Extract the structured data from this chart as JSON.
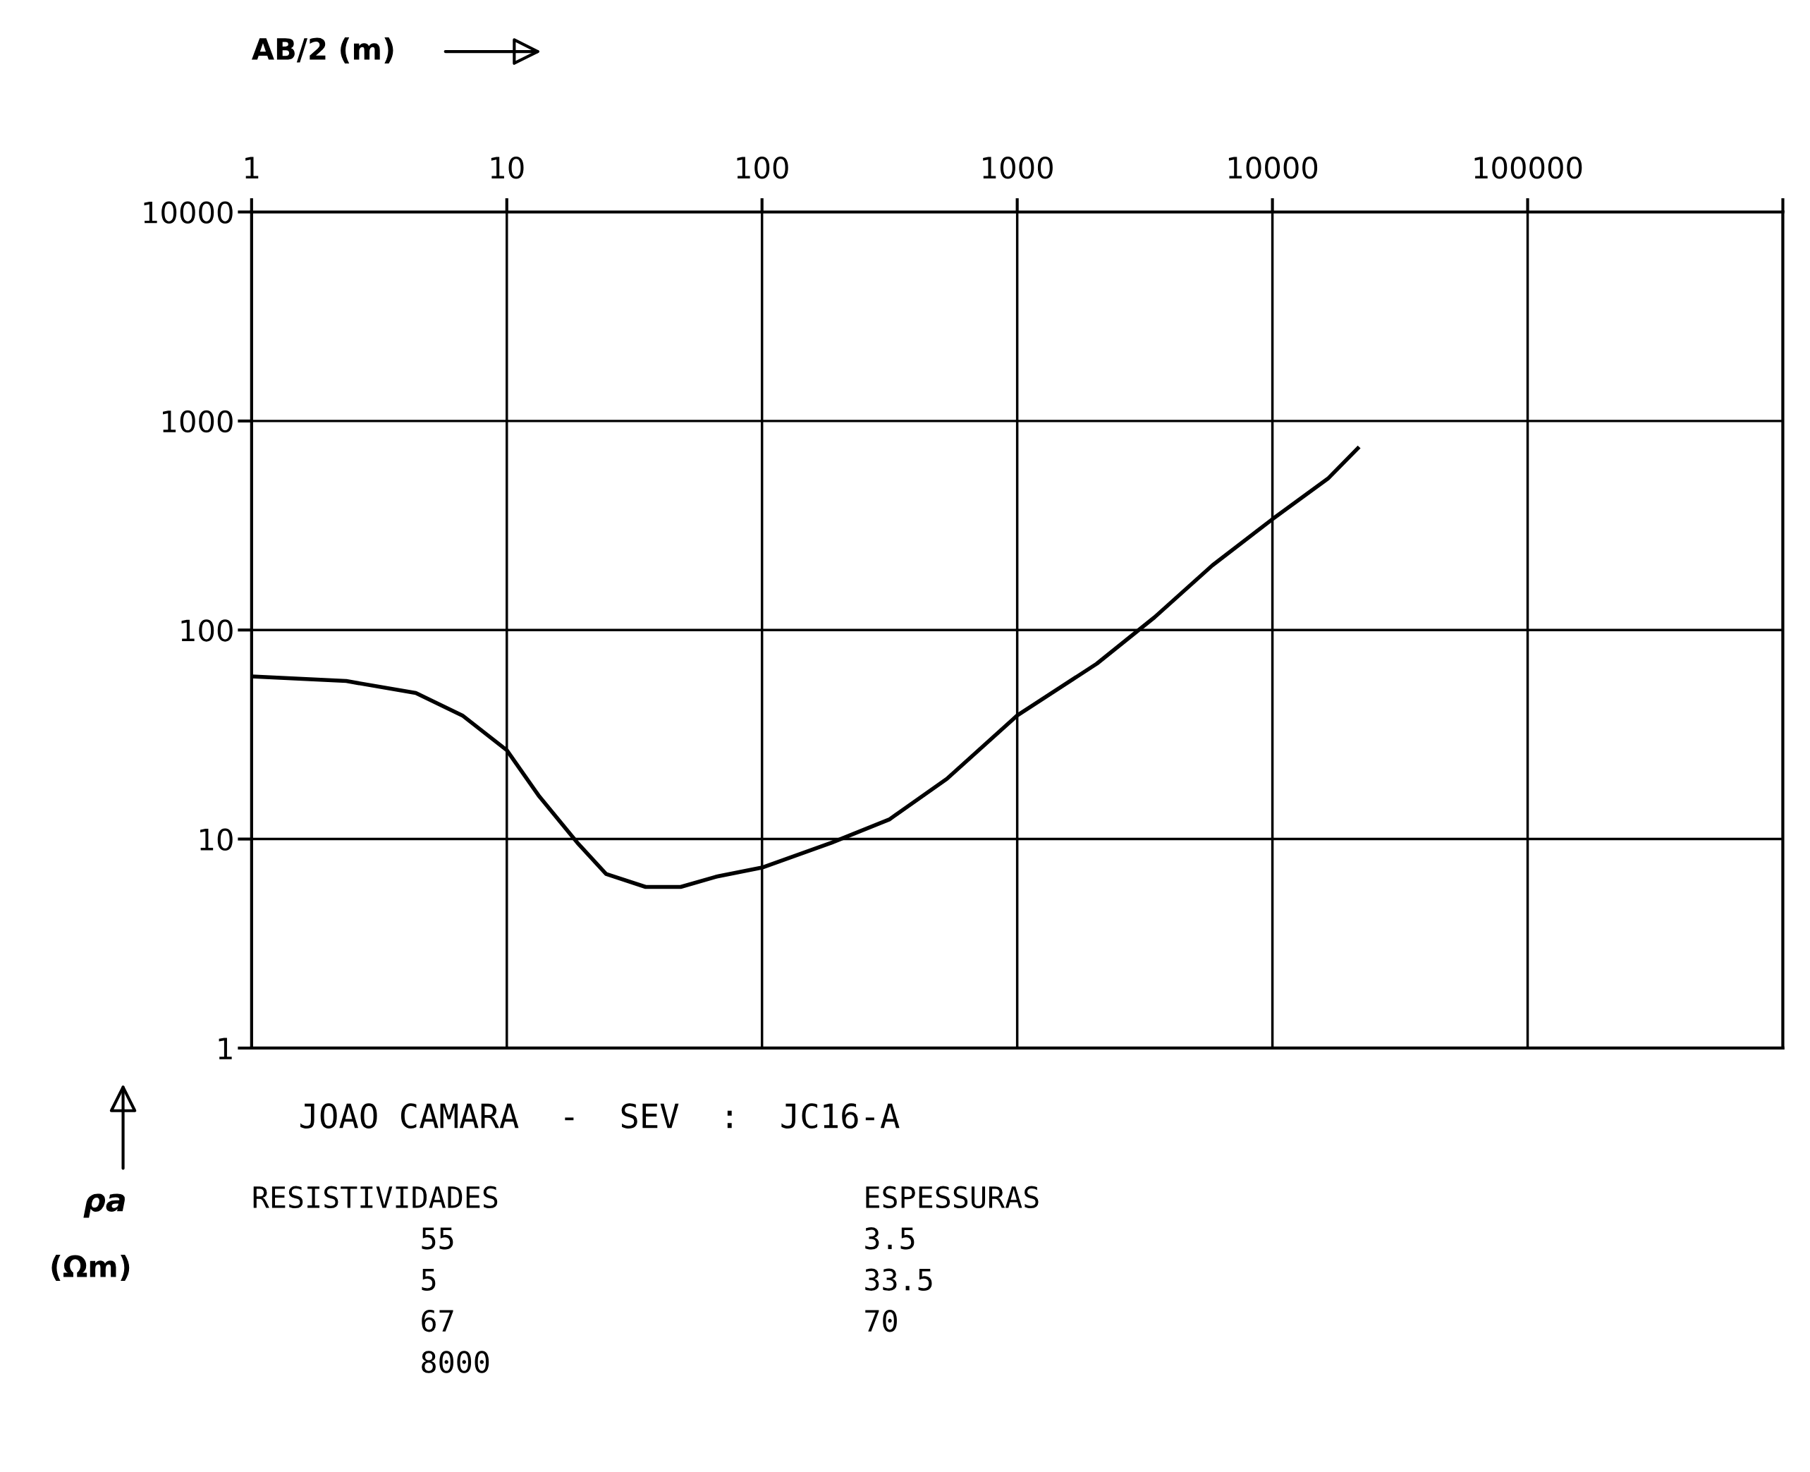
{
  "chart_data": {
    "type": "line",
    "title": "JOAO CAMARA  -  SEV  :  JC16-A",
    "xlabel": "AB/2 (m)",
    "ylabel": "ρa (Ωm)",
    "log": "xy",
    "grid": true,
    "marker": "none",
    "line_style": "solid",
    "xlim": [
      1,
      1000000
    ],
    "ylim": [
      1,
      10000
    ],
    "xticks": [
      1,
      10,
      100,
      1000,
      10000,
      100000,
      {
        "value": 1000000,
        "label": null
      }
    ],
    "yticks": [
      1,
      10,
      100,
      1000,
      10000
    ],
    "series": [
      {
        "color": "#000000",
        "x": [
          1,
          2.35,
          4.4,
          6.7,
          10,
          13.4,
          18.9,
          24.5,
          35,
          48,
          66,
          100,
          187,
          315,
          530,
          1000,
          2050,
          3450,
          5820,
          10000,
          16500,
          21600
        ],
        "values": [
          60,
          57,
          50,
          39,
          26.6,
          16,
          9.6,
          6.8,
          5.9,
          5.9,
          6.6,
          7.3,
          9.6,
          12.4,
          19.4,
          39,
          69,
          115,
          204,
          339,
          530,
          740
        ]
      }
    ],
    "annotations": [
      "RESISTIVIDADES",
      "55",
      "5",
      "67",
      "8000",
      "ESPESSURAS",
      "3.5",
      "33.5",
      "70"
    ]
  }
}
